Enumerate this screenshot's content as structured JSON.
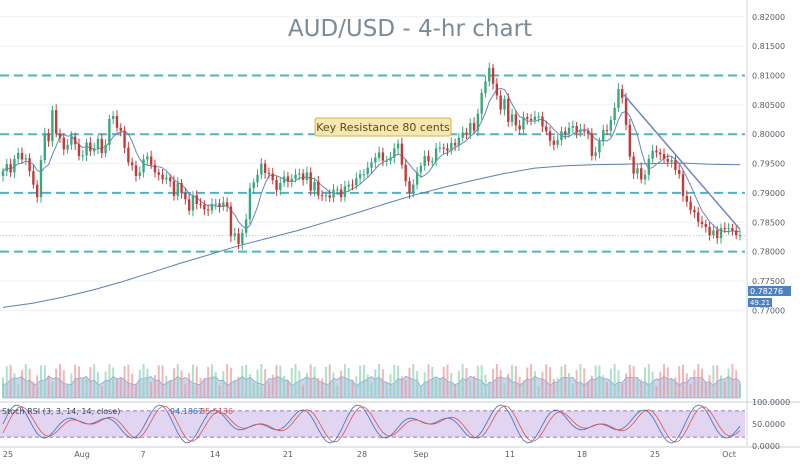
{
  "chart_data": {
    "type": "candlestick",
    "title": "AUD/USD - 4-hr chart",
    "annotation": "Key Resistance 80 cents",
    "x_tick_labels": [
      "25",
      "Aug",
      "7",
      "14",
      "21",
      "28",
      "Sep",
      "11",
      "18",
      "25",
      "Oct"
    ],
    "y_tick_labels": [
      "0.82000",
      "0.81500",
      "0.81000",
      "0.80500",
      "0.80000",
      "0.79500",
      "0.79000",
      "0.78500",
      "0.78000",
      "0.77500",
      "0.77000"
    ],
    "ylim": [
      0.7675,
      0.8215
    ],
    "price_close": [
      0.7937,
      0.7949,
      0.7935,
      0.7958,
      0.7968,
      0.7957,
      0.7959,
      0.7937,
      0.7914,
      0.7893,
      0.7956,
      0.8001,
      0.7988,
      0.8041,
      0.8001,
      0.7994,
      0.7974,
      0.7982,
      0.7996,
      0.7983,
      0.7963,
      0.7964,
      0.7986,
      0.7971,
      0.7976,
      0.7992,
      0.7968,
      0.7982,
      0.8026,
      0.8031,
      0.8011,
      0.8006,
      0.7977,
      0.7952,
      0.7947,
      0.7929,
      0.7935,
      0.7957,
      0.7962,
      0.7948,
      0.7935,
      0.7931,
      0.7923,
      0.7926,
      0.792,
      0.7895,
      0.7917,
      0.79,
      0.7889,
      0.787,
      0.7896,
      0.7881,
      0.788,
      0.7872,
      0.787,
      0.7881,
      0.7882,
      0.7876,
      0.7884,
      0.7877,
      0.7826,
      0.7831,
      0.7813,
      0.7832,
      0.7855,
      0.7908,
      0.7918,
      0.7931,
      0.795,
      0.7934,
      0.7933,
      0.7922,
      0.7905,
      0.7917,
      0.7928,
      0.7919,
      0.7924,
      0.7931,
      0.7933,
      0.7922,
      0.7935,
      0.7904,
      0.7919,
      0.7896,
      0.7895,
      0.7896,
      0.7892,
      0.7906,
      0.7906,
      0.7893,
      0.7911,
      0.7914,
      0.7913,
      0.7925,
      0.7932,
      0.7932,
      0.7943,
      0.7952,
      0.796,
      0.7969,
      0.7955,
      0.7955,
      0.796,
      0.7976,
      0.7984,
      0.7948,
      0.792,
      0.79,
      0.7914,
      0.7935,
      0.7946,
      0.7963,
      0.7954,
      0.7954,
      0.7976,
      0.7977,
      0.7976,
      0.7972,
      0.7985,
      0.7981,
      0.7994,
      0.8003,
      0.8001,
      0.8019,
      0.8006,
      0.8035,
      0.807,
      0.809,
      0.8113,
      0.8086,
      0.8066,
      0.8042,
      0.806,
      0.8021,
      0.8034,
      0.8015,
      0.8008,
      0.8029,
      0.8026,
      0.8024,
      0.803,
      0.803,
      0.8013,
      0.8005,
      0.7989,
      0.7982,
      0.799,
      0.8005,
      0.8001,
      0.8011,
      0.8014,
      0.8003,
      0.8008,
      0.8005,
      0.8001,
      0.7963,
      0.7969,
      0.7988,
      0.8007,
      0.8006,
      0.8024,
      0.8045,
      0.8077,
      0.8062,
      0.8016,
      0.7962,
      0.7933,
      0.7942,
      0.7923,
      0.7931,
      0.7958,
      0.7972,
      0.7969,
      0.7966,
      0.7958,
      0.7953,
      0.7956,
      0.7939,
      0.7932,
      0.7895,
      0.7885,
      0.7871,
      0.7867,
      0.7851,
      0.7847,
      0.7842,
      0.7828,
      0.7836,
      0.7823,
      0.784,
      0.7838,
      0.784,
      0.7836,
      0.7828,
      0.7828
    ],
    "ma_fast_last": 0.78276,
    "ma_slow": [
      0.7705,
      0.7712,
      0.7722,
      0.7734,
      0.7748,
      0.7764,
      0.778,
      0.7795,
      0.781,
      0.7823,
      0.7836,
      0.7851,
      0.7866,
      0.7882,
      0.7897,
      0.791,
      0.7922,
      0.7933,
      0.7942,
      0.7946,
      0.7948,
      0.7949,
      0.795,
      0.7951,
      0.7949,
      0.7948
    ],
    "ma_slow_x": [
      0,
      10,
      20,
      30,
      40,
      50,
      60,
      70,
      80,
      90,
      100,
      110,
      120,
      130,
      140,
      150,
      160,
      170,
      180,
      190,
      200,
      210,
      220,
      230,
      240,
      250
    ],
    "support_resistance_levels": [
      0.81,
      0.8,
      0.79,
      0.78
    ],
    "trendline": {
      "from": {
        "x": 21.3,
        "y": 0.8067
      },
      "to": {
        "x": 25.8,
        "y": 0.7838
      }
    },
    "last_price": "0.78276",
    "stoch_rsi": {
      "label": "Stoch RSI (3, 3, 14, 14, close)",
      "k_value": "94.1867",
      "d_value": "85.5136",
      "axis_labels": [
        "100.0000",
        "50.0000",
        "0.0000"
      ],
      "badge_value": "49.21"
    }
  },
  "colors": {
    "up_candle": "#3aa87e",
    "down_candle": "#c23b3b",
    "dashed_level": "#4fb3c6",
    "ma_fast": "#6a85b8",
    "ma_slow": "#5d7fb4",
    "volume_area": "#9db4e3",
    "rsi_band": "#c9b3e8",
    "stoch_k": "#3b6fb6",
    "stoch_d": "#d9534f",
    "annotation_bg": "#f7e7b0",
    "annotation_border": "#d9b44a",
    "price_badge": "#4e81c2"
  }
}
